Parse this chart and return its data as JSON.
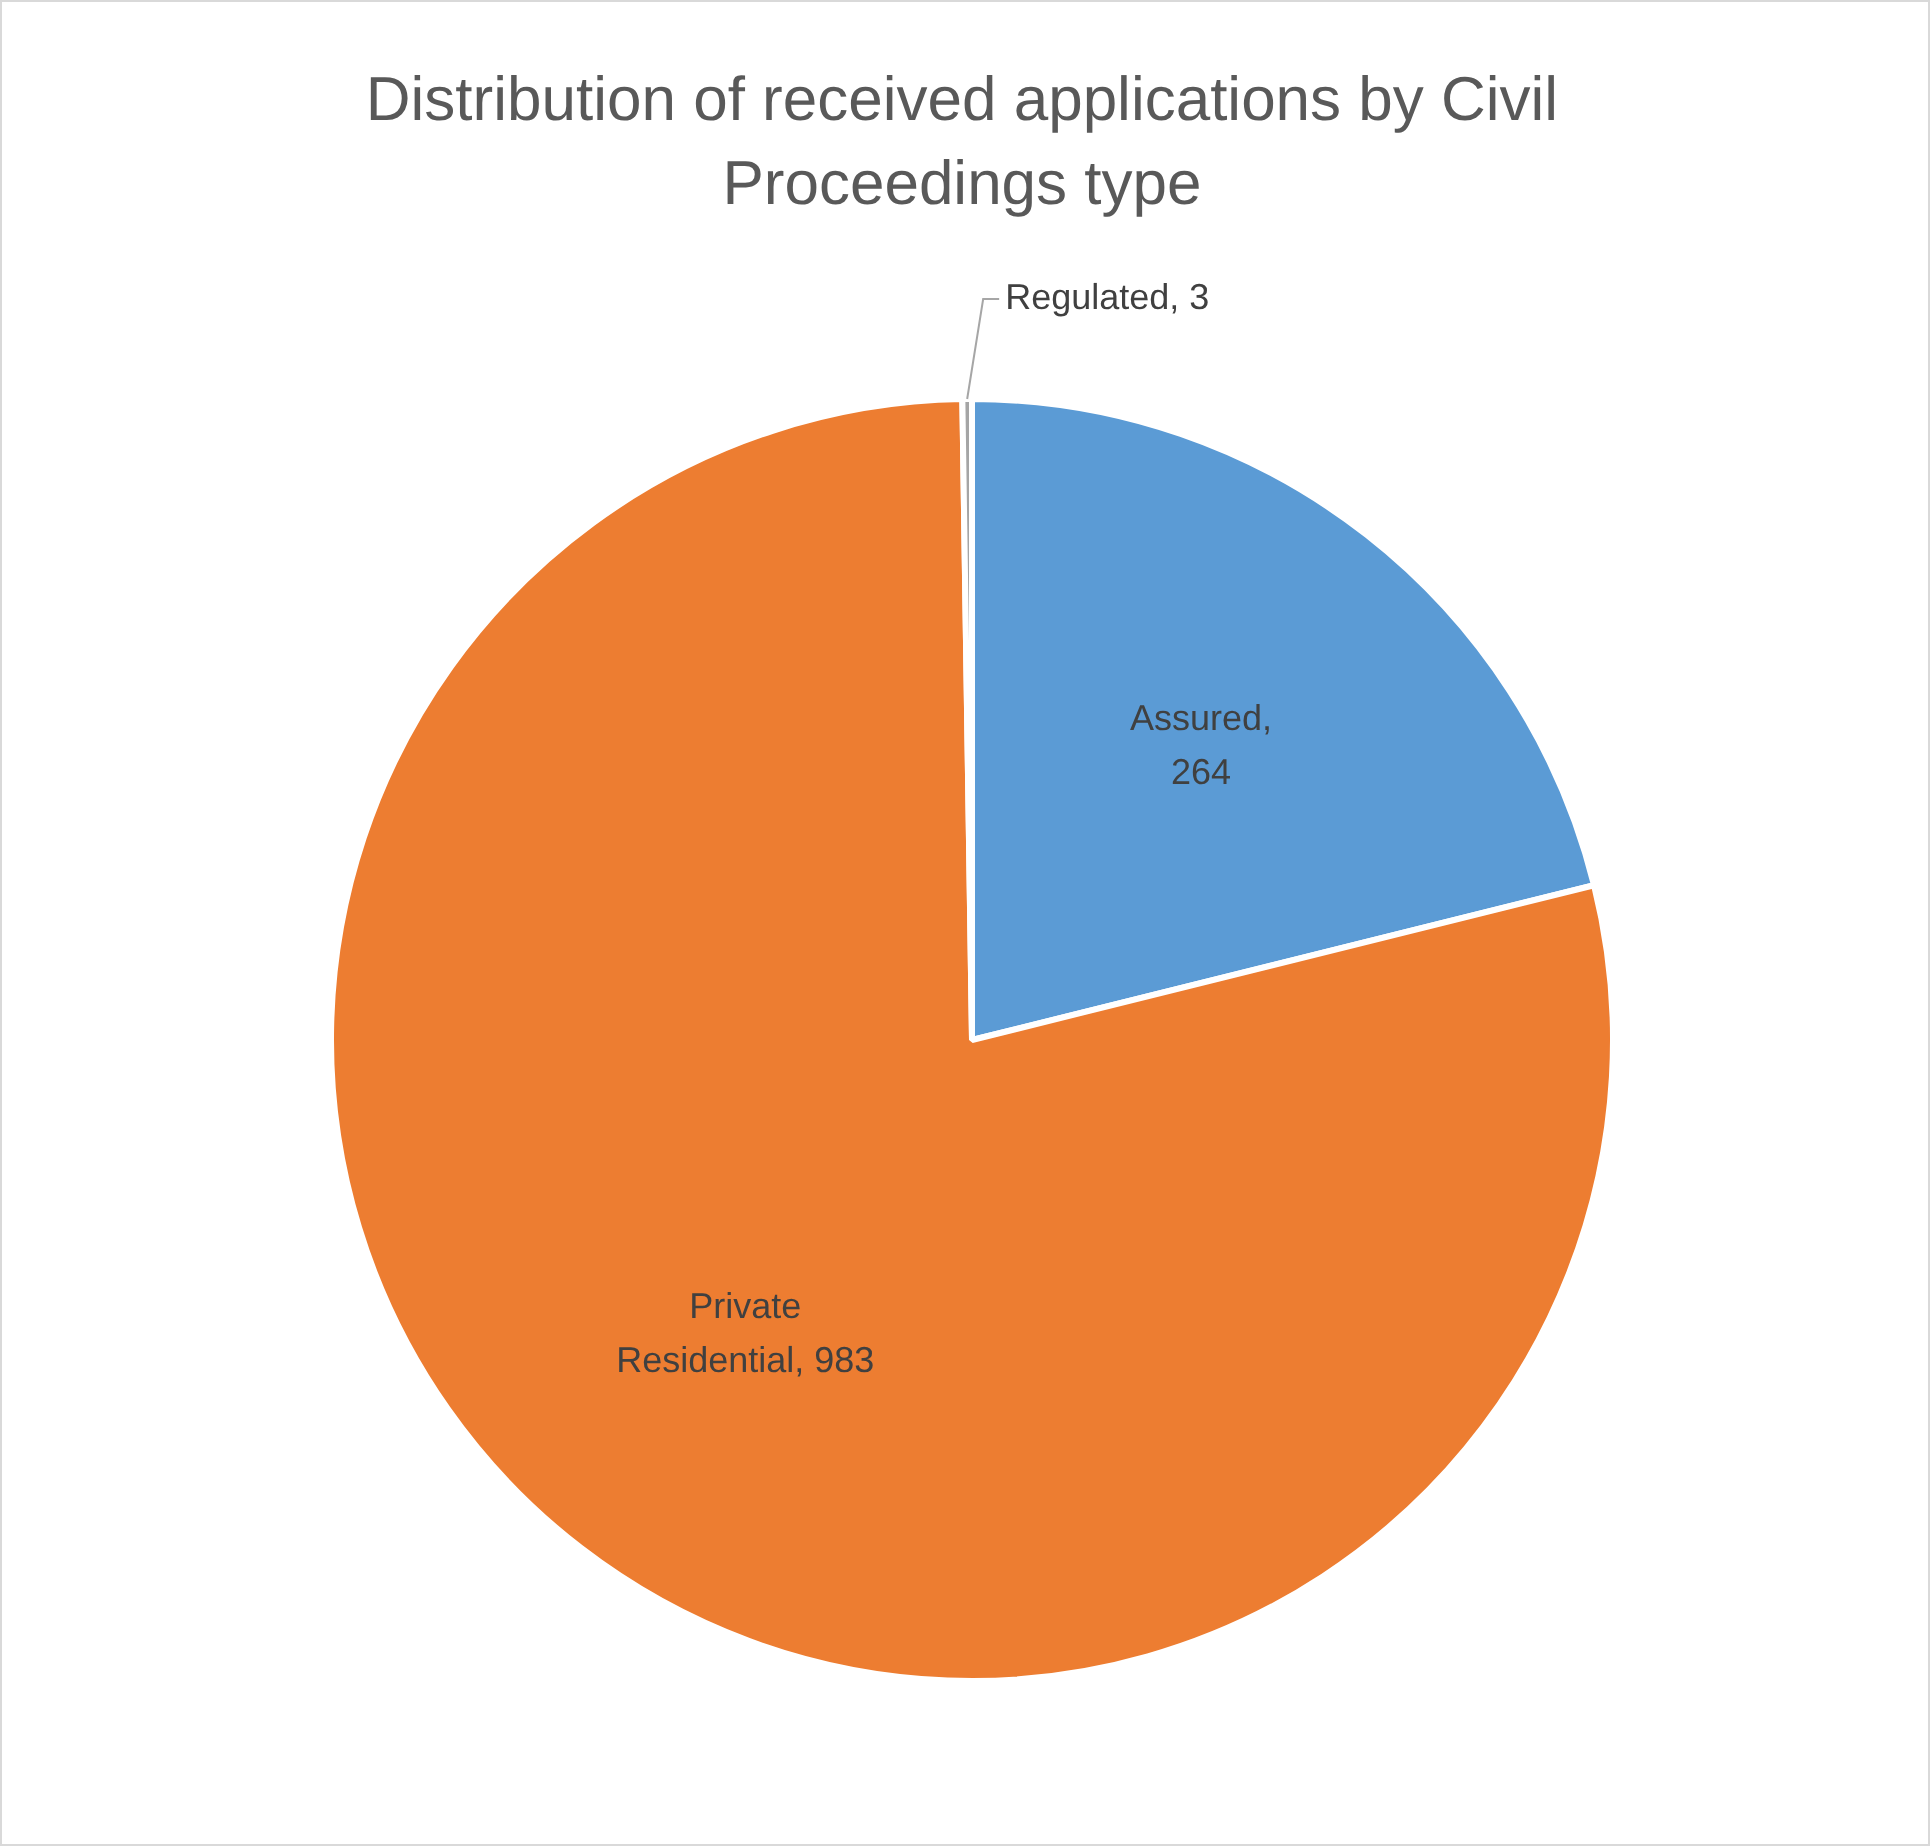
{
  "chart_data": {
    "type": "pie",
    "title": "Distribution of received applications by Civil Proceedings type",
    "categories": [
      "Assured",
      "Private Residential",
      "Regulated"
    ],
    "values": [
      264,
      983,
      3
    ],
    "colors": [
      "#5b9bd5",
      "#ed7d31",
      "#a5a5a5"
    ],
    "value_labels": [
      ", 264",
      ", 983",
      ", 3"
    ],
    "legend": false
  }
}
